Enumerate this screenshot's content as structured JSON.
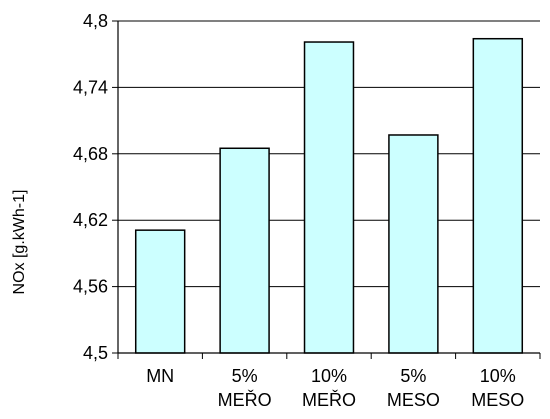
{
  "chart_data": {
    "type": "bar",
    "title": "",
    "xlabel": "",
    "ylabel": "NOx [g.kWh-1]",
    "categories": [
      [
        "MN"
      ],
      [
        "5%",
        "MEŘO"
      ],
      [
        "10%",
        "MEŘO"
      ],
      [
        "5%",
        "MESO"
      ],
      [
        "10%",
        "MESO"
      ]
    ],
    "values": [
      4.611,
      4.685,
      4.781,
      4.697,
      4.784
    ],
    "ylim": [
      4.5,
      4.8
    ],
    "yticks": [
      4.5,
      4.56,
      4.62,
      4.68,
      4.74,
      4.8
    ],
    "ytick_labels": [
      "4,5",
      "4,56",
      "4,62",
      "4,68",
      "4,74",
      "4,8"
    ],
    "grid": true,
    "bar_color": "#ccffff",
    "bar_edge_color": "#000000"
  }
}
